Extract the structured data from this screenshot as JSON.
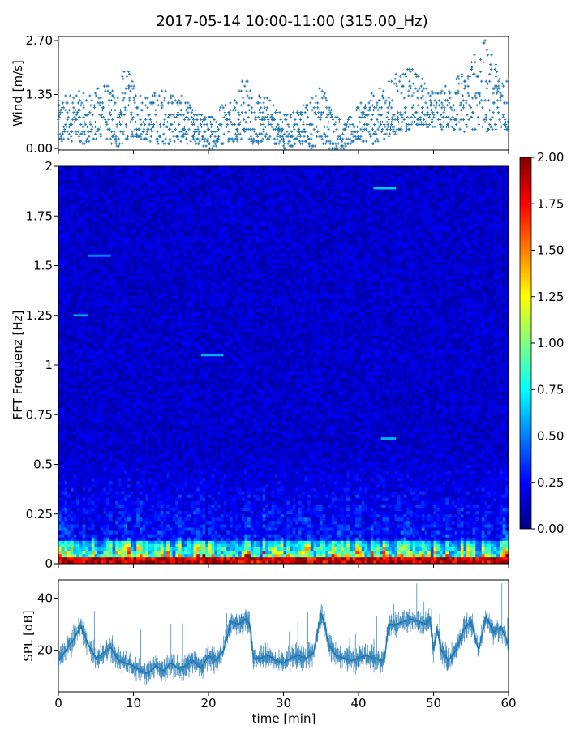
{
  "title": "2017-05-14 10:00-11:00 (315.00_Hz)",
  "colors": {
    "series": "#1f77b4",
    "axis": "#000000",
    "colormap": [
      "#00007f",
      "#0000ff",
      "#007fff",
      "#00ffff",
      "#7fff7f",
      "#ffff00",
      "#ff7f00",
      "#ff0000",
      "#7f0000"
    ]
  },
  "chart_data": [
    {
      "type": "scatter",
      "ylabel": "Wind [m/s]",
      "xlim": [
        0,
        60
      ],
      "ylim": [
        0,
        2.7
      ],
      "ytick_labels": [
        "0.00",
        "1.35",
        "2.70"
      ],
      "marker": "plus",
      "envelope": {
        "x": [
          0,
          2,
          4,
          6,
          8,
          9,
          10,
          12,
          14,
          16,
          18,
          20,
          22,
          24,
          25,
          26,
          28,
          30,
          32,
          34,
          35,
          36,
          38,
          40,
          42,
          44,
          46,
          47,
          48,
          50,
          52,
          54,
          56,
          57,
          58,
          60
        ],
        "lo": [
          0.1,
          0.2,
          0.1,
          0.3,
          0.0,
          0.2,
          0.3,
          0.2,
          0.1,
          0.2,
          0.1,
          0.0,
          0.1,
          0.2,
          0.3,
          0.1,
          0.2,
          0.0,
          0.1,
          0.0,
          0.2,
          0.0,
          0.0,
          0.2,
          0.1,
          0.3,
          0.4,
          0.5,
          0.6,
          0.5,
          0.5,
          0.4,
          0.5,
          0.4,
          0.5,
          0.4
        ],
        "hi": [
          1.2,
          1.5,
          1.3,
          1.7,
          1.4,
          2.2,
          1.6,
          1.3,
          1.6,
          1.4,
          1.0,
          0.8,
          1.2,
          1.5,
          1.9,
          1.3,
          1.3,
          0.9,
          1.0,
          1.4,
          1.7,
          1.2,
          0.6,
          1.1,
          1.4,
          1.7,
          2.1,
          2.0,
          1.9,
          1.4,
          1.6,
          2.0,
          2.6,
          2.7,
          2.2,
          2.0
        ]
      }
    },
    {
      "type": "heatmap",
      "ylabel": "FFT Frequenz [Hz]",
      "xlim": [
        0,
        60
      ],
      "ylim": [
        0,
        2
      ],
      "ytick_labels": [
        "0",
        "0.25",
        "0.5",
        "0.75",
        "1",
        "1.25",
        "1.5",
        "1.75",
        "2"
      ],
      "colorbar": {
        "range": [
          0,
          2
        ],
        "tick_labels": [
          "0.00",
          "0.25",
          "0.50",
          "0.75",
          "1.00",
          "1.25",
          "1.50",
          "1.75",
          "2.00"
        ]
      },
      "background_level": 0.15,
      "low_freq_band": {
        "freq_range": [
          0,
          0.12
        ],
        "level_range": [
          0.6,
          2.0
        ]
      },
      "bright_lines": [
        {
          "x": [
            42,
            45
          ],
          "freq": 1.89,
          "level": 0.65
        },
        {
          "x": [
            19,
            22
          ],
          "freq": 1.05,
          "level": 0.6
        },
        {
          "x": [
            2,
            4
          ],
          "freq": 1.25,
          "level": 0.55
        },
        {
          "x": [
            4,
            7
          ],
          "freq": 1.55,
          "level": 0.5
        },
        {
          "x": [
            43,
            45
          ],
          "freq": 0.63,
          "level": 0.6
        }
      ]
    },
    {
      "type": "line",
      "ylabel": "SPL [dB]",
      "xlabel": "time [min]",
      "xlim": [
        0,
        60
      ],
      "ylim": [
        4,
        47
      ],
      "xtick_labels": [
        "0",
        "10",
        "20",
        "30",
        "40",
        "50",
        "60"
      ],
      "ytick_labels": [
        "20",
        "40"
      ],
      "series": [
        {
          "x": [
            0,
            1,
            2,
            3,
            4,
            5,
            6,
            7,
            8,
            9,
            10,
            11,
            12,
            13,
            14,
            15,
            16,
            17,
            18,
            19,
            20,
            21,
            22,
            22.5,
            23,
            24,
            25,
            25.5,
            26,
            27,
            28,
            29,
            30,
            31,
            32,
            33,
            34,
            34.5,
            35,
            35.5,
            36,
            37,
            38,
            39,
            40,
            41,
            42,
            43,
            43.5,
            44,
            45,
            46,
            47,
            48,
            49,
            49.5,
            50,
            50.5,
            51,
            52,
            53,
            54,
            55,
            56,
            57,
            58,
            59,
            60
          ],
          "y": [
            16,
            20,
            24,
            29,
            22,
            17,
            19,
            21,
            16,
            15,
            14,
            12,
            11,
            14,
            12,
            15,
            13,
            14,
            16,
            13,
            18,
            16,
            20,
            25,
            31,
            30,
            32,
            30,
            17,
            17,
            18,
            16,
            15,
            17,
            18,
            17,
            19,
            26,
            34,
            30,
            22,
            18,
            17,
            16,
            17,
            18,
            17,
            16,
            17,
            30,
            30,
            31,
            32,
            31,
            30,
            32,
            20,
            28,
            20,
            16,
            20,
            28,
            31,
            20,
            33,
            27,
            29,
            22
          ]
        }
      ]
    }
  ]
}
